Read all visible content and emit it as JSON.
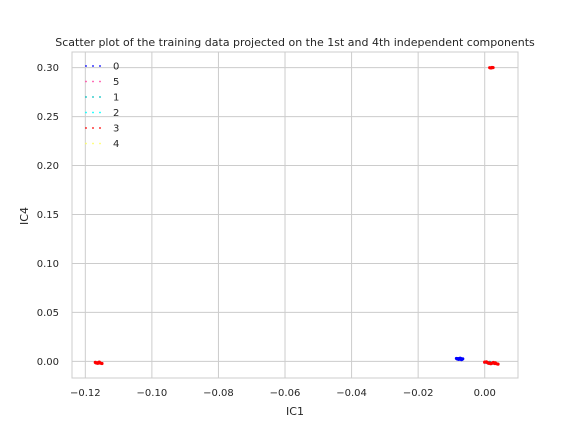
{
  "chart_data": {
    "type": "scatter",
    "title": "Scatter plot of the training data projected on the 1st and 4th independent components",
    "xlabel": "IC1",
    "ylabel": "IC4",
    "xlim": [
      -0.124,
      0.01
    ],
    "ylim": [
      -0.017,
      0.316
    ],
    "xticks": [
      -0.12,
      -0.1,
      -0.08,
      -0.06,
      -0.04,
      -0.02,
      0.0
    ],
    "xtick_labels": [
      "−0.12",
      "−0.10",
      "−0.08",
      "−0.06",
      "−0.04",
      "−0.02",
      "0.00"
    ],
    "yticks": [
      0.0,
      0.05,
      0.1,
      0.15,
      0.2,
      0.25,
      0.3
    ],
    "ytick_labels": [
      "0.00",
      "0.05",
      "0.10",
      "0.15",
      "0.20",
      "0.25",
      "0.30"
    ],
    "grid": true,
    "legend_position": "top-left",
    "series": [
      {
        "name": "0",
        "color": "#0000ff",
        "points": [
          [
            -0.0085,
            0.003
          ],
          [
            -0.008,
            0.0028
          ],
          [
            -0.0075,
            0.0025
          ],
          [
            -0.0072,
            0.003
          ],
          [
            -0.0068,
            0.0022
          ],
          [
            -0.0078,
            0.002
          ],
          [
            -0.007,
            0.0018
          ],
          [
            -0.0082,
            0.0024
          ],
          [
            -0.0066,
            0.0026
          ],
          [
            -0.0074,
            0.0032
          ]
        ]
      },
      {
        "name": "5",
        "color": "#ff4da6",
        "points": [
          [
            0.0,
            -0.001
          ],
          [
            0.001,
            -0.0015
          ],
          [
            0.002,
            -0.002
          ]
        ]
      },
      {
        "name": "1",
        "color": "#00bfbf",
        "points": [
          [
            0.0015,
            -0.001
          ],
          [
            0.0025,
            -0.0018
          ]
        ]
      },
      {
        "name": "2",
        "color": "#00ffff",
        "points": [
          [
            0.0005,
            -0.0012
          ]
        ]
      },
      {
        "name": "3",
        "color": "#ff0000",
        "points": [
          [
            0.0015,
            0.3
          ],
          [
            0.002,
            0.2998
          ],
          [
            0.0025,
            0.3001
          ],
          [
            0.0018,
            0.2997
          ],
          [
            0.0022,
            0.3002
          ],
          [
            -0.117,
            -0.001
          ],
          [
            -0.1165,
            -0.0015
          ],
          [
            -0.116,
            -0.0012
          ],
          [
            -0.1155,
            -0.0018
          ],
          [
            -0.115,
            -0.0022
          ],
          [
            -0.1163,
            -0.002
          ],
          [
            -0.1158,
            -0.0008
          ],
          [
            -0.1168,
            -0.0016
          ],
          [
            0.0,
            -0.0008
          ],
          [
            0.0008,
            -0.0012
          ],
          [
            0.0015,
            -0.0016
          ],
          [
            0.0022,
            -0.0018
          ],
          [
            0.003,
            -0.0022
          ],
          [
            0.0036,
            -0.0025
          ],
          [
            0.0012,
            -0.002
          ],
          [
            0.0026,
            -0.0012
          ],
          [
            0.0005,
            -0.0005
          ],
          [
            0.0032,
            -0.0015
          ],
          [
            0.004,
            -0.0028
          ],
          [
            0.0018,
            -0.0024
          ]
        ]
      },
      {
        "name": "4",
        "color": "#ffff66",
        "points": []
      }
    ]
  }
}
